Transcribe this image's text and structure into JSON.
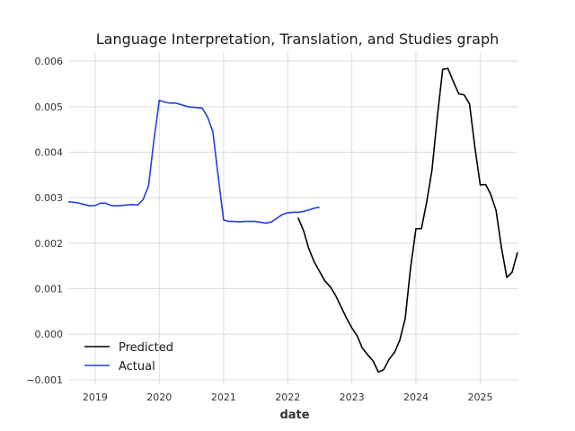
{
  "chart_data": {
    "type": "line",
    "title": "Language Interpretation, Translation, and Studies graph",
    "xlabel": "date",
    "ylabel": "",
    "xlim": [
      "2018-08-01",
      "2025-08-01"
    ],
    "ylim": [
      -0.0011,
      0.0062
    ],
    "x_ticks": [
      "2019",
      "2020",
      "2021",
      "2022",
      "2023",
      "2024",
      "2025"
    ],
    "y_ticks": [
      "−0.001",
      "0.000",
      "0.001",
      "0.002",
      "0.003",
      "0.004",
      "0.005",
      "0.006"
    ],
    "grid": true,
    "legend": "lower-left",
    "series": [
      {
        "name": "Predicted",
        "color": "#000000",
        "points": [
          [
            "2022-03-01",
            0.00256
          ],
          [
            "2022-04-01",
            0.00228
          ],
          [
            "2022-05-01",
            0.00188
          ],
          [
            "2022-06-01",
            0.00159
          ],
          [
            "2022-07-01",
            0.00138
          ],
          [
            "2022-08-01",
            0.00117
          ],
          [
            "2022-09-01",
            0.00104
          ],
          [
            "2022-10-01",
            0.00085
          ],
          [
            "2022-11-01",
            0.0006
          ],
          [
            "2022-12-01",
            0.00036
          ],
          [
            "2023-01-01",
            0.00014
          ],
          [
            "2023-02-01",
            -4e-05
          ],
          [
            "2023-03-01",
            -0.0003
          ],
          [
            "2023-04-01",
            -0.00045
          ],
          [
            "2023-05-01",
            -0.00058
          ],
          [
            "2023-06-01",
            -0.00083
          ],
          [
            "2023-07-01",
            -0.00078
          ],
          [
            "2023-08-01",
            -0.00055
          ],
          [
            "2023-09-01",
            -0.0004
          ],
          [
            "2023-10-01",
            -0.00013
          ],
          [
            "2023-11-01",
            0.00035
          ],
          [
            "2023-12-01",
            0.00145
          ],
          [
            "2024-01-01",
            0.00232
          ],
          [
            "2024-02-01",
            0.00232
          ],
          [
            "2024-03-01",
            0.00288
          ],
          [
            "2024-04-01",
            0.0036
          ],
          [
            "2024-05-01",
            0.00475
          ],
          [
            "2024-06-01",
            0.00582
          ],
          [
            "2024-07-01",
            0.00584
          ],
          [
            "2024-08-01",
            0.00555
          ],
          [
            "2024-09-01",
            0.00528
          ],
          [
            "2024-10-01",
            0.00526
          ],
          [
            "2024-11-01",
            0.00506
          ],
          [
            "2024-12-01",
            0.00412
          ],
          [
            "2025-01-01",
            0.00328
          ],
          [
            "2025-02-01",
            0.00329
          ],
          [
            "2025-03-01",
            0.00308
          ],
          [
            "2025-04-01",
            0.00272
          ],
          [
            "2025-05-01",
            0.00192
          ],
          [
            "2025-06-01",
            0.00125
          ],
          [
            "2025-07-01",
            0.00136
          ],
          [
            "2025-08-01",
            0.0018
          ]
        ]
      },
      {
        "name": "Actual",
        "color": "#1f3fe0",
        "points": [
          [
            "2018-08-01",
            0.00291
          ],
          [
            "2018-09-01",
            0.0029
          ],
          [
            "2018-10-01",
            0.00288
          ],
          [
            "2018-11-01",
            0.00285
          ],
          [
            "2018-12-01",
            0.00282
          ],
          [
            "2019-01-01",
            0.00283
          ],
          [
            "2019-02-01",
            0.00288
          ],
          [
            "2019-03-01",
            0.00288
          ],
          [
            "2019-04-01",
            0.00283
          ],
          [
            "2019-05-01",
            0.00282
          ],
          [
            "2019-06-01",
            0.00283
          ],
          [
            "2019-07-01",
            0.00284
          ],
          [
            "2019-08-01",
            0.00285
          ],
          [
            "2019-09-01",
            0.00284
          ],
          [
            "2019-10-01",
            0.00296
          ],
          [
            "2019-11-01",
            0.00326
          ],
          [
            "2019-12-01",
            0.00425
          ],
          [
            "2020-01-01",
            0.00514
          ],
          [
            "2020-02-01",
            0.0051
          ],
          [
            "2020-03-01",
            0.00508
          ],
          [
            "2020-04-01",
            0.00508
          ],
          [
            "2020-05-01",
            0.00505
          ],
          [
            "2020-06-01",
            0.00501
          ],
          [
            "2020-07-01",
            0.00499
          ],
          [
            "2020-08-01",
            0.00498
          ],
          [
            "2020-09-01",
            0.00497
          ],
          [
            "2020-10-01",
            0.00478
          ],
          [
            "2020-11-01",
            0.00445
          ],
          [
            "2020-12-01",
            0.00348
          ],
          [
            "2021-01-01",
            0.00251
          ],
          [
            "2021-02-01",
            0.00248
          ],
          [
            "2021-03-01",
            0.00248
          ],
          [
            "2021-04-01",
            0.00247
          ],
          [
            "2021-05-01",
            0.00248
          ],
          [
            "2021-06-01",
            0.00248
          ],
          [
            "2021-07-01",
            0.00248
          ],
          [
            "2021-08-01",
            0.00246
          ],
          [
            "2021-09-01",
            0.00244
          ],
          [
            "2021-10-01",
            0.00247
          ],
          [
            "2021-11-01",
            0.00255
          ],
          [
            "2021-12-01",
            0.00263
          ],
          [
            "2022-01-01",
            0.00267
          ],
          [
            "2022-02-01",
            0.00268
          ],
          [
            "2022-03-01",
            0.00268
          ],
          [
            "2022-04-01",
            0.0027
          ],
          [
            "2022-05-01",
            0.00273
          ],
          [
            "2022-06-01",
            0.00277
          ],
          [
            "2022-07-01",
            0.00279
          ]
        ]
      }
    ]
  }
}
